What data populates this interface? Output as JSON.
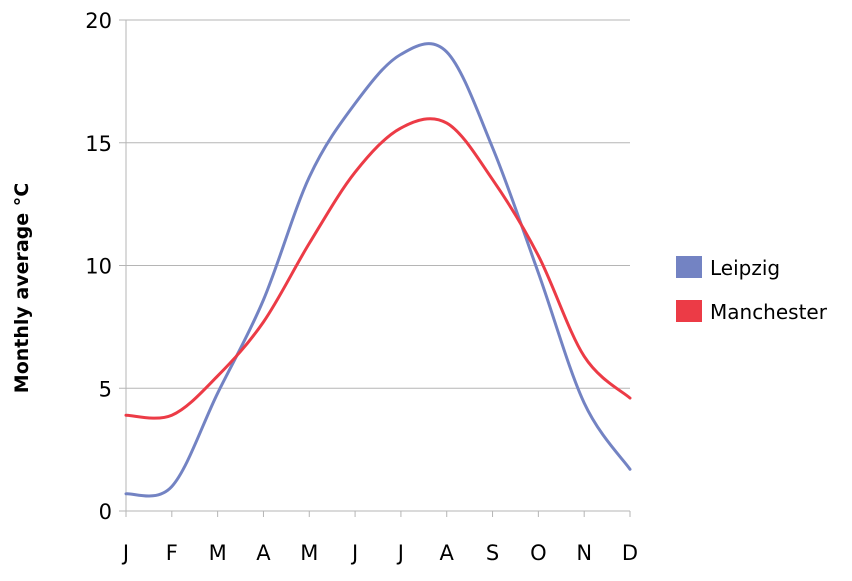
{
  "chart_data": {
    "type": "line",
    "title": "",
    "xlabel": "",
    "ylabel": "Monthly average °C",
    "categories": [
      "J",
      "F",
      "M",
      "A",
      "M",
      "J",
      "J",
      "A",
      "S",
      "O",
      "N",
      "D"
    ],
    "ylim": [
      0,
      20
    ],
    "yticks": [
      "0",
      "5",
      "10",
      "15",
      "20"
    ],
    "grid": true,
    "legend_position": "right",
    "series": [
      {
        "name": "Leipzig",
        "color": "#7383c3",
        "values": [
          0.7,
          1.0,
          4.8,
          8.6,
          13.6,
          16.6,
          18.6,
          18.7,
          14.8,
          9.7,
          4.4,
          1.7
        ]
      },
      {
        "name": "Manchester",
        "color": "#ec3b46",
        "values": [
          3.9,
          3.9,
          5.5,
          7.7,
          10.9,
          13.8,
          15.6,
          15.8,
          13.5,
          10.4,
          6.3,
          4.6
        ]
      }
    ]
  }
}
